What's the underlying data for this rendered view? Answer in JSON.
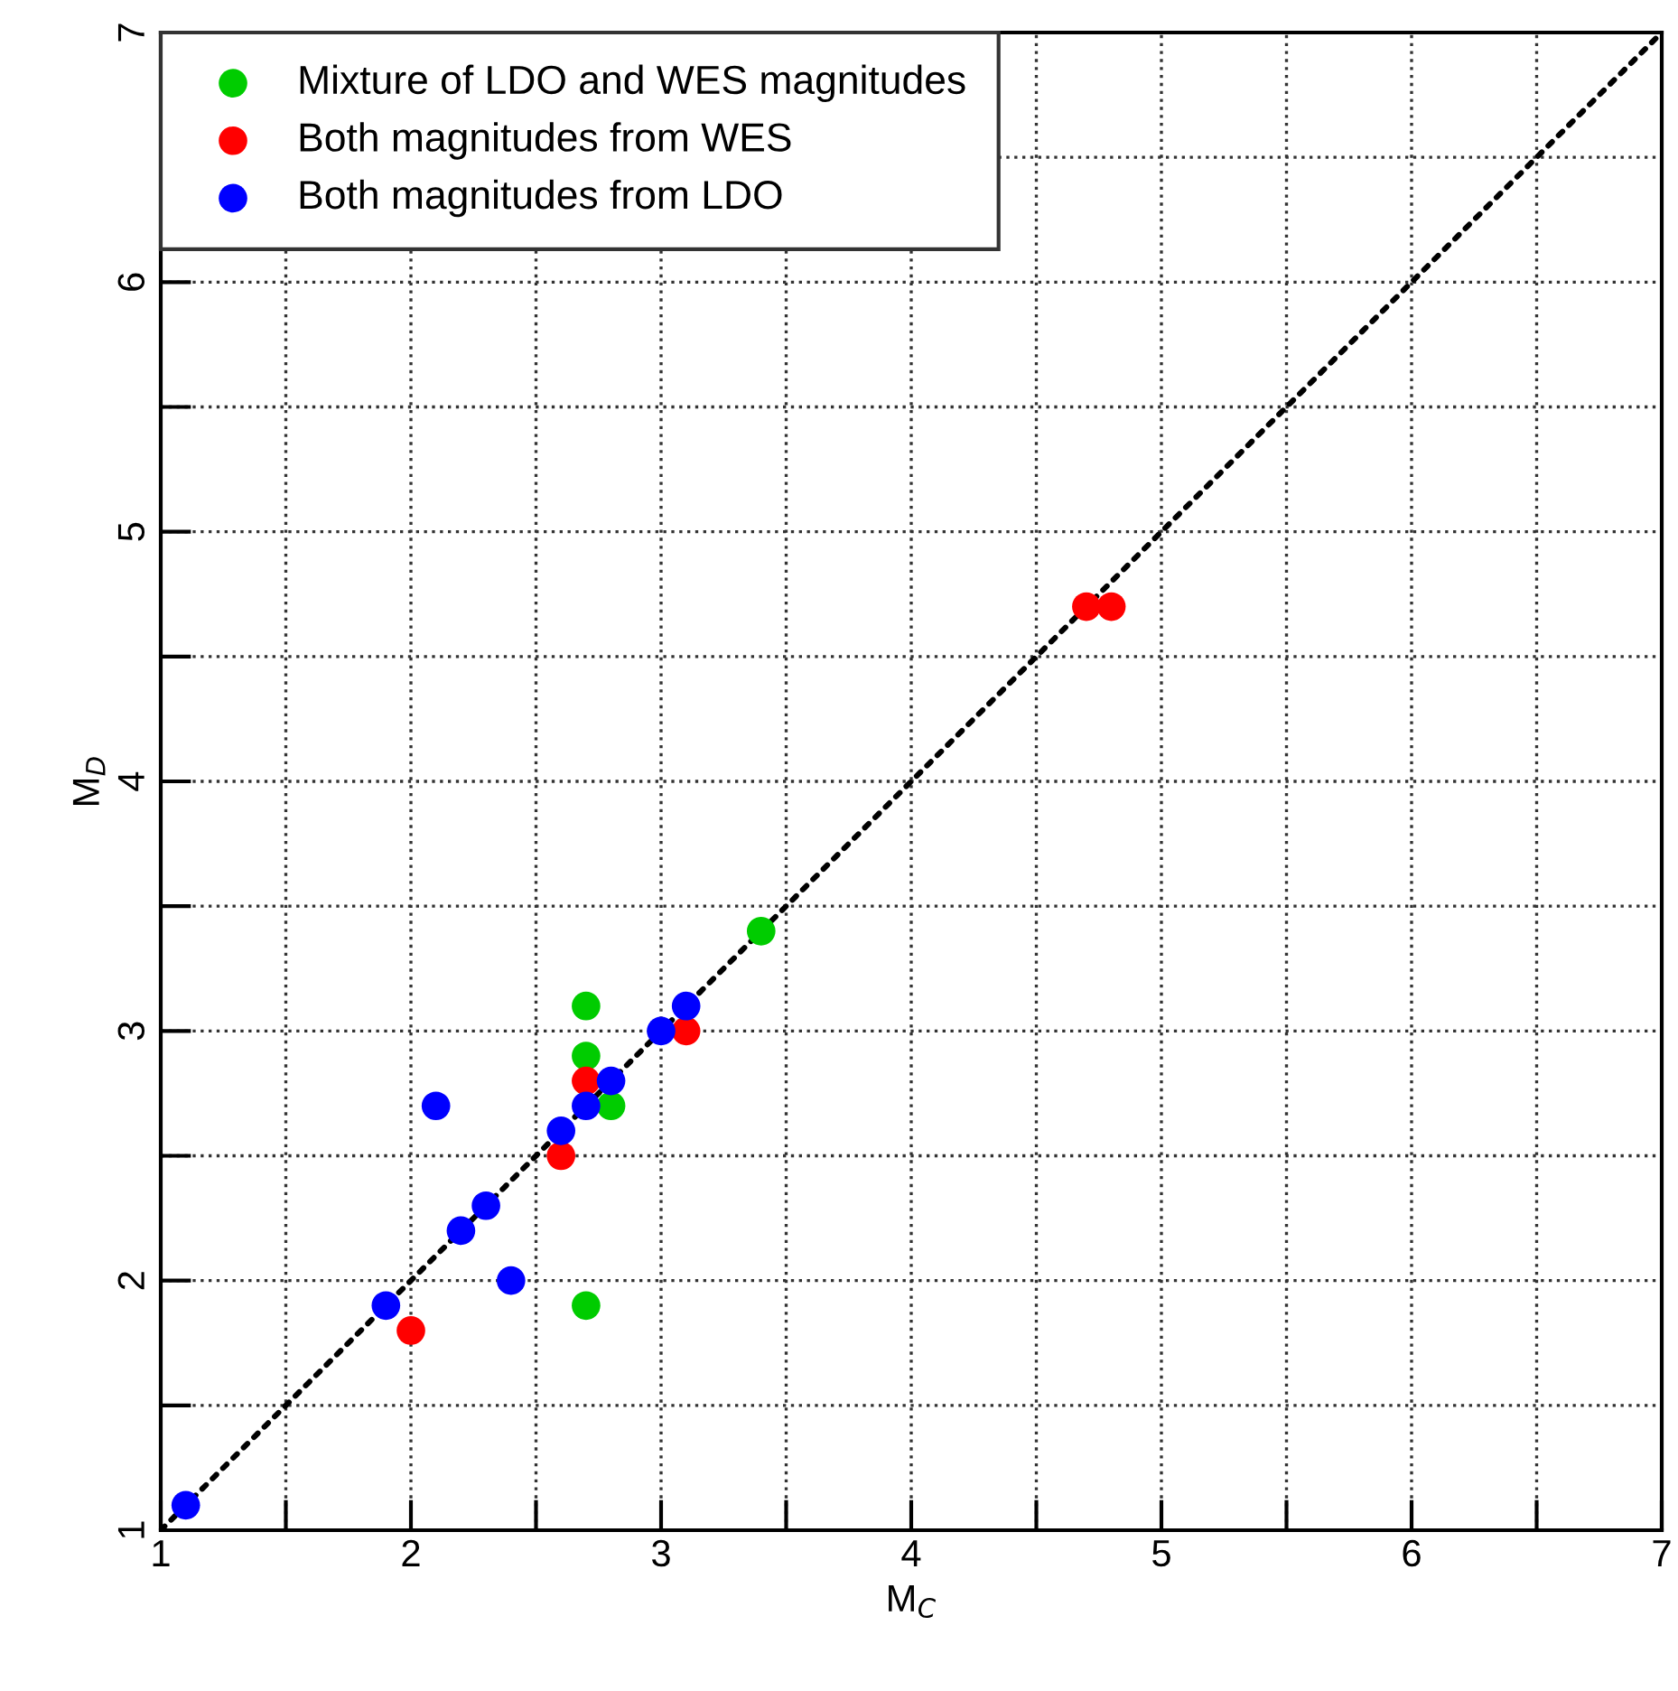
{
  "chart_data": {
    "type": "scatter",
    "xlabel": "M$_{C}$",
    "ylabel": "M$_{D}$",
    "xlim": [
      1,
      7
    ],
    "ylim": [
      1,
      7
    ],
    "xticks": [
      1,
      {
        "value": 1.5,
        "label": null
      },
      2,
      {
        "value": 2.5,
        "label": null
      },
      3,
      {
        "value": 3.5,
        "label": null
      },
      4,
      {
        "value": 4.5,
        "label": null
      },
      5,
      {
        "value": 5.5,
        "label": null
      },
      6,
      {
        "value": 6.5,
        "label": null
      },
      7
    ],
    "yticks": [
      1,
      {
        "value": 1.5,
        "label": null
      },
      2,
      {
        "value": 2.5,
        "label": null
      },
      3,
      {
        "value": 3.5,
        "label": null
      },
      4,
      {
        "value": 4.5,
        "label": null
      },
      5,
      {
        "value": 5.5,
        "label": null
      },
      6,
      {
        "value": 6.5,
        "label": null
      },
      7
    ],
    "grid": true,
    "legend": "top left",
    "marker": "circle",
    "series": [
      {
        "type": "line",
        "color": "#000000",
        "line_style": "dotted",
        "marker": "none",
        "x": [
          1,
          7
        ],
        "values": [
          1,
          7
        ]
      },
      {
        "name": "Mixture of LDO and WES magnitudes",
        "color": "#00cc00",
        "x": [
          2.7,
          2.7,
          2.8,
          2.7,
          3.4
        ],
        "values": [
          3.1,
          2.9,
          2.7,
          1.9,
          3.4
        ]
      },
      {
        "name": "Both magnitudes from WES",
        "color": "#ff0000",
        "x": [
          4.7,
          4.8,
          3.1,
          2.7,
          2.6,
          2.0
        ],
        "values": [
          4.7,
          4.7,
          3.0,
          2.8,
          2.5,
          1.8
        ]
      },
      {
        "name": "Both magnitudes from LDO",
        "color": "#0000ff",
        "x": [
          1.1,
          1.9,
          2.2,
          2.3,
          2.4,
          2.1,
          2.6,
          2.7,
          2.8,
          3.0,
          3.1
        ],
        "values": [
          1.1,
          1.9,
          2.2,
          2.3,
          2.0,
          2.7,
          2.6,
          2.7,
          2.8,
          3.0,
          3.1
        ]
      }
    ]
  }
}
